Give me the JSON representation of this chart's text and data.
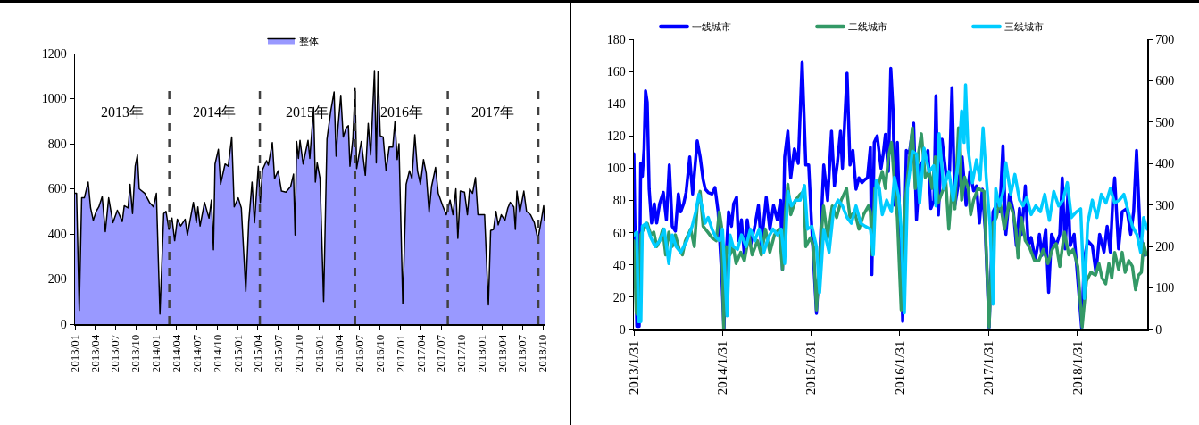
{
  "chart_data": [
    {
      "type": "area",
      "legend": "top",
      "grid": false,
      "xlim": [
        "2013-01-01",
        "2018-10-12"
      ],
      "xticks": [
        {
          "value": "2013-01-01",
          "label": "2013/01"
        },
        {
          "value": "2013-04-01",
          "label": "2013/04"
        },
        {
          "value": "2013-07-01",
          "label": "2013/07"
        },
        {
          "value": "2013-10-01",
          "label": "2013/10"
        },
        {
          "value": "2014-01-01",
          "label": "2014/01"
        },
        {
          "value": "2014-04-01",
          "label": "2014/04"
        },
        {
          "value": "2014-07-01",
          "label": "2014/07"
        },
        {
          "value": "2014-10-01",
          "label": "2014/10"
        },
        {
          "value": "2015-01-01",
          "label": "2015/01"
        },
        {
          "value": "2015-04-01",
          "label": "2015/04"
        },
        {
          "value": "2015-07-01",
          "label": "2015/07"
        },
        {
          "value": "2015-10-01",
          "label": "2015/10"
        },
        {
          "value": "2016-01-01",
          "label": "2016/01"
        },
        {
          "value": "2016-04-01",
          "label": "2016/04"
        },
        {
          "value": "2016-07-01",
          "label": "2016/07"
        },
        {
          "value": "2016-10-01",
          "label": "2016/10"
        },
        {
          "value": "2017-01-01",
          "label": "2017/01"
        },
        {
          "value": "2017-04-01",
          "label": "2017/04"
        },
        {
          "value": "2017-07-01",
          "label": "2017/07"
        },
        {
          "value": "2017-10-01",
          "label": "2017/10"
        },
        {
          "value": "2018-01-01",
          "label": "2018/01"
        },
        {
          "value": "2018-04-01",
          "label": "2018/04"
        },
        {
          "value": "2018-07-01",
          "label": "2018/07"
        },
        {
          "value": "2018-10-01",
          "label": "2018/10"
        }
      ],
      "ylim": [
        0,
        1200
      ],
      "yticks": [
        0,
        200,
        400,
        600,
        800,
        1000,
        1200
      ],
      "ref_lines": [
        {
          "axis": "x",
          "value": "2014-02-28",
          "color": "#404040",
          "line_style": "dashed"
        },
        {
          "axis": "x",
          "value": "2015-04-10",
          "color": "#404040",
          "line_style": "dashed"
        },
        {
          "axis": "x",
          "value": "2016-06-10",
          "color": "#404040",
          "line_style": "dashed"
        },
        {
          "axis": "x",
          "value": "2017-07-31",
          "color": "#404040",
          "line_style": "dashed"
        },
        {
          "axis": "x",
          "value": "2018-09-10",
          "color": "#404040",
          "line_style": "dashed"
        }
      ],
      "annotations": [
        "2013年",
        "2014年",
        "2015年",
        "2016年",
        "2017年"
      ],
      "series": [
        {
          "name": "整体",
          "color": "#9999ff",
          "x": [
            "2013-01-01",
            "2013-01-08",
            "2013-01-20",
            "2013-01-31",
            "2013-02-12",
            "2013-03-01",
            "2013-03-12",
            "2013-03-24",
            "2013-04-06",
            "2013-04-18",
            "2013-05-03",
            "2013-05-17",
            "2013-06-01",
            "2013-06-20",
            "2013-07-10",
            "2013-08-01",
            "2013-08-10",
            "2013-08-27",
            "2013-09-05",
            "2013-09-16",
            "2013-09-28",
            "2013-10-08",
            "2013-10-16",
            "2013-11-10",
            "2013-12-01",
            "2013-12-19",
            "2014-01-01",
            "2014-01-17",
            "2014-02-03",
            "2014-02-13",
            "2014-02-26",
            "2014-03-12",
            "2014-03-24",
            "2014-04-05",
            "2014-04-20",
            "2014-05-10",
            "2014-05-20",
            "2014-06-01",
            "2014-06-16",
            "2014-06-29",
            "2014-07-06",
            "2014-07-16",
            "2014-08-05",
            "2014-08-25",
            "2014-09-05",
            "2014-09-14",
            "2014-09-21",
            "2014-10-06",
            "2014-10-16",
            "2014-11-05",
            "2014-11-19",
            "2014-12-05",
            "2014-12-16",
            "2015-01-03",
            "2015-01-17",
            "2015-02-06",
            "2015-02-19",
            "2015-03-06",
            "2015-03-17",
            "2015-04-03",
            "2015-04-12",
            "2015-04-22",
            "2015-05-10",
            "2015-05-18",
            "2015-06-05",
            "2015-06-15",
            "2015-07-01",
            "2015-07-16",
            "2015-08-05",
            "2015-08-26",
            "2015-09-08",
            "2015-09-15",
            "2015-09-22",
            "2015-09-30",
            "2015-10-07",
            "2015-10-21",
            "2015-11-12",
            "2015-11-20",
            "2015-12-07",
            "2015-12-15",
            "2015-12-23",
            "2016-01-05",
            "2016-01-21",
            "2016-02-05",
            "2016-02-22",
            "2016-03-08",
            "2016-03-17",
            "2016-03-25",
            "2016-04-07",
            "2016-04-18",
            "2016-05-01",
            "2016-05-11",
            "2016-05-18",
            "2016-05-31",
            "2016-06-10",
            "2016-06-17",
            "2016-06-30",
            "2016-07-08",
            "2016-07-26",
            "2016-08-08",
            "2016-08-19",
            "2016-09-05",
            "2016-09-13",
            "2016-09-21",
            "2016-10-01",
            "2016-10-14",
            "2016-10-27",
            "2016-11-10",
            "2016-11-26",
            "2016-12-06",
            "2016-12-16",
            "2016-12-24",
            "2017-01-10",
            "2017-01-25",
            "2017-02-09",
            "2017-02-20",
            "2017-03-05",
            "2017-03-17",
            "2017-03-30",
            "2017-04-13",
            "2017-04-25",
            "2017-05-08",
            "2017-05-19",
            "2017-06-06",
            "2017-06-18",
            "2017-07-08",
            "2017-07-24",
            "2017-08-10",
            "2017-08-23",
            "2017-09-05",
            "2017-09-14",
            "2017-09-25",
            "2017-10-14",
            "2017-10-27",
            "2017-11-06",
            "2017-11-19",
            "2017-12-02",
            "2017-12-13",
            "2017-12-29",
            "2018-01-12",
            "2018-01-29",
            "2018-02-08",
            "2018-02-21",
            "2018-03-04",
            "2018-03-14",
            "2018-03-28",
            "2018-04-13",
            "2018-04-26",
            "2018-05-07",
            "2018-05-23",
            "2018-05-30",
            "2018-06-06",
            "2018-06-19",
            "2018-07-07",
            "2018-07-19",
            "2018-08-06",
            "2018-08-23",
            "2018-09-08",
            "2018-09-24",
            "2018-10-04",
            "2018-10-08",
            "2018-10-12"
          ],
          "values": [
            580,
            580,
            60,
            560,
            560,
            630,
            515,
            460,
            500,
            520,
            565,
            410,
            560,
            450,
            505,
            455,
            525,
            515,
            620,
            490,
            700,
            750,
            600,
            580,
            540,
            520,
            580,
            45,
            490,
            500,
            420,
            470,
            370,
            465,
            435,
            465,
            395,
            460,
            540,
            450,
            520,
            435,
            540,
            470,
            550,
            330,
            710,
            775,
            620,
            710,
            700,
            830,
            520,
            560,
            515,
            145,
            450,
            630,
            450,
            700,
            540,
            685,
            725,
            705,
            805,
            645,
            680,
            590,
            585,
            610,
            665,
            395,
            810,
            735,
            815,
            710,
            815,
            735,
            960,
            630,
            715,
            645,
            100,
            820,
            945,
            1030,
            745,
            870,
            1015,
            830,
            870,
            880,
            700,
            820,
            1045,
            690,
            765,
            810,
            660,
            890,
            750,
            1125,
            715,
            1120,
            835,
            830,
            680,
            785,
            785,
            900,
            730,
            800,
            90,
            620,
            680,
            645,
            840,
            680,
            620,
            730,
            670,
            495,
            610,
            695,
            580,
            525,
            485,
            550,
            485,
            600,
            380,
            590,
            585,
            485,
            600,
            580,
            650,
            485,
            485,
            485,
            85,
            415,
            420,
            500,
            440,
            485,
            460,
            515,
            540,
            520,
            420,
            590,
            495,
            590,
            500,
            485,
            450,
            375,
            465,
            525,
            460,
            485
          ]
        }
      ]
    },
    {
      "type": "line",
      "legend": "top",
      "grid": false,
      "xlim": [
        "2013-01-31",
        "2018-11-15"
      ],
      "xticks": [
        {
          "value": "2013-01-31",
          "label": "2013/1/31"
        },
        {
          "value": "2014-01-31",
          "label": "2014/1/31"
        },
        {
          "value": "2015-01-31",
          "label": "2015/1/31"
        },
        {
          "value": "2016-01-31",
          "label": "2016/1/31"
        },
        {
          "value": "2017-01-31",
          "label": "2017/1/31"
        },
        {
          "value": "2018-01-31",
          "label": "2018/1/31"
        }
      ],
      "ylim": [
        0,
        180
      ],
      "yticks": [
        0,
        20,
        40,
        60,
        80,
        100,
        120,
        140,
        160,
        180
      ],
      "y2lim": [
        0,
        700
      ],
      "y2ticks": [
        0,
        100,
        200,
        300,
        400,
        500,
        600,
        700
      ],
      "series": [
        {
          "name": "一线城市",
          "color": "#0000ff",
          "x": [
            "2013-01-31",
            "2013-02-05",
            "2013-02-12",
            "2013-02-22",
            "2013-02-28",
            "2013-03-07",
            "2013-03-14",
            "2013-03-20",
            "2013-03-27",
            "2013-04-04",
            "2013-04-14",
            "2013-04-25",
            "2013-05-05",
            "2013-05-17",
            "2013-06-01",
            "2013-06-14",
            "2013-06-26",
            "2013-07-08",
            "2013-07-21",
            "2013-08-02",
            "2013-08-12",
            "2013-08-24",
            "2013-09-03",
            "2013-09-18",
            "2013-09-30",
            "2013-10-19",
            "2013-10-31",
            "2013-11-12",
            "2013-11-21",
            "2013-12-03",
            "2013-12-19",
            "2013-12-31",
            "2014-01-13",
            "2014-01-29",
            "2014-02-06",
            "2014-02-16",
            "2014-02-25",
            "2014-03-09",
            "2014-03-18",
            "2014-03-30",
            "2014-04-07",
            "2014-04-19",
            "2014-05-01",
            "2014-05-13",
            "2014-05-26",
            "2014-06-13",
            "2014-06-28",
            "2014-07-10",
            "2014-07-30",
            "2014-08-14",
            "2014-08-29",
            "2014-09-14",
            "2014-09-27",
            "2014-10-05",
            "2014-10-14",
            "2014-10-27",
            "2014-11-08",
            "2014-11-23",
            "2014-12-09",
            "2014-12-25",
            "2015-01-09",
            "2015-01-21",
            "2015-02-03",
            "2015-02-22",
            "2015-03-07",
            "2015-03-24",
            "2015-04-09",
            "2015-04-25",
            "2015-05-07",
            "2015-05-19",
            "2015-06-01",
            "2015-06-09",
            "2015-06-28",
            "2015-07-10",
            "2015-07-22",
            "2015-08-04",
            "2015-08-16",
            "2015-08-28",
            "2015-09-10",
            "2015-09-20",
            "2015-10-02",
            "2015-10-08",
            "2015-10-18",
            "2015-10-30",
            "2015-11-15",
            "2015-11-24",
            "2015-12-03",
            "2015-12-15",
            "2015-12-25",
            "2016-01-03",
            "2016-01-11",
            "2016-01-21",
            "2016-02-02",
            "2016-02-12",
            "2016-02-27",
            "2016-03-10",
            "2016-03-28",
            "2016-04-09",
            "2016-04-24",
            "2016-05-10",
            "2016-05-26",
            "2016-06-07",
            "2016-06-20",
            "2016-06-28",
            "2016-07-08",
            "2016-07-23",
            "2016-08-10",
            "2016-08-23",
            "2016-09-02",
            "2016-09-14",
            "2016-09-29",
            "2016-10-14",
            "2016-10-30",
            "2016-11-15",
            "2016-11-30",
            "2016-12-12",
            "2016-12-24",
            "2017-01-05",
            "2017-01-17",
            "2017-02-02",
            "2017-02-18",
            "2017-03-06",
            "2017-03-18",
            "2017-03-31",
            "2017-04-12",
            "2017-04-27",
            "2017-05-13",
            "2017-05-25",
            "2017-06-07",
            "2017-06-16",
            "2017-07-01",
            "2017-07-13",
            "2017-07-25",
            "2017-08-11",
            "2017-08-28",
            "2017-09-07",
            "2017-09-23",
            "2017-10-05",
            "2017-10-17",
            "2017-11-05",
            "2017-11-20",
            "2017-11-30",
            "2017-12-12",
            "2017-12-24",
            "2018-01-02",
            "2018-01-18",
            "2018-02-18",
            "2018-03-01",
            "2018-03-15",
            "2018-04-03",
            "2018-04-18",
            "2018-05-03",
            "2018-05-21",
            "2018-06-03",
            "2018-06-16",
            "2018-06-26",
            "2018-07-04",
            "2018-07-20",
            "2018-08-04",
            "2018-08-23",
            "2018-09-08",
            "2018-09-20",
            "2018-10-02",
            "2018-10-17",
            "2018-11-05"
          ],
          "values": [
            109,
            59,
            2,
            2,
            103,
            95,
            112,
            148,
            141,
            87,
            66,
            78,
            66,
            78,
            85,
            68,
            102,
            64,
            61,
            84,
            73,
            78,
            85,
            107,
            84,
            117,
            107,
            93,
            87,
            85,
            84,
            88,
            73,
            30,
            0,
            48,
            73,
            64,
            78,
            82,
            55,
            68,
            46,
            68,
            52,
            64,
            77,
            52,
            82,
            62,
            77,
            68,
            80,
            37,
            107,
            123,
            94,
            112,
            103,
            166,
            102,
            102,
            62,
            10,
            44,
            102,
            80,
            123,
            89,
            103,
            123,
            100,
            159,
            102,
            111,
            87,
            94,
            91,
            93,
            94,
            113,
            34,
            116,
            120,
            100,
            109,
            121,
            98,
            162,
            137,
            77,
            116,
            59,
            5,
            111,
            109,
            128,
            68,
            102,
            105,
            111,
            75,
            80,
            145,
            71,
            118,
            94,
            98,
            150,
            77,
            91,
            107,
            77,
            98,
            86,
            89,
            66,
            87,
            62,
            1,
            73,
            78,
            73,
            114,
            59,
            84,
            73,
            52,
            75,
            59,
            89,
            52,
            57,
            43,
            59,
            46,
            62,
            23,
            59,
            52,
            59,
            94,
            50,
            86,
            52,
            59,
            1,
            44,
            55,
            52,
            35,
            59,
            48,
            64,
            48,
            80,
            94,
            50,
            73,
            75,
            59,
            73,
            111,
            59,
            46
          ]
        },
        {
          "name": "二线城市",
          "color": "#339966",
          "axis": "y2",
          "x": [
            "2013-01-31",
            "2013-02-10",
            "2013-02-17",
            "2013-02-28",
            "2013-03-12",
            "2013-03-27",
            "2013-04-11",
            "2013-04-23",
            "2013-05-05",
            "2013-05-17",
            "2013-05-30",
            "2013-06-11",
            "2013-06-24",
            "2013-07-08",
            "2013-07-21",
            "2013-08-06",
            "2013-08-19",
            "2013-08-31",
            "2013-09-22",
            "2013-10-07",
            "2013-10-19",
            "2013-10-31",
            "2013-11-12",
            "2013-12-01",
            "2013-12-19",
            "2014-01-05",
            "2014-01-18",
            "2014-01-27",
            "2014-02-05",
            "2014-02-16",
            "2014-03-03",
            "2014-03-16",
            "2014-03-28",
            "2014-04-16",
            "2014-05-01",
            "2014-05-20",
            "2014-06-02",
            "2014-06-24",
            "2014-07-10",
            "2014-07-27",
            "2014-08-14",
            "2014-09-02",
            "2014-09-21",
            "2014-10-05",
            "2014-10-17",
            "2014-10-27",
            "2014-11-08",
            "2014-11-28",
            "2014-12-17",
            "2015-01-01",
            "2015-01-09",
            "2015-01-28",
            "2015-02-10",
            "2015-02-22",
            "2015-03-07",
            "2015-03-23",
            "2015-04-09",
            "2015-04-28",
            "2015-05-16",
            "2015-06-04",
            "2015-06-26",
            "2015-07-10",
            "2015-07-29",
            "2015-08-16",
            "2015-09-04",
            "2015-09-24",
            "2015-10-02",
            "2015-10-10",
            "2015-10-20",
            "2015-11-01",
            "2015-11-20",
            "2015-12-03",
            "2015-12-15",
            "2015-12-28",
            "2016-01-09",
            "2016-01-21",
            "2016-02-06",
            "2016-02-23",
            "2016-03-10",
            "2016-03-23",
            "2016-04-04",
            "2016-04-17",
            "2016-04-29",
            "2016-05-15",
            "2016-05-31",
            "2016-06-12",
            "2016-06-25",
            "2016-07-07",
            "2016-07-20",
            "2016-08-08",
            "2016-08-20",
            "2016-09-02",
            "2016-09-14",
            "2016-09-29",
            "2016-10-12",
            "2016-10-24",
            "2016-11-08",
            "2016-11-18",
            "2016-11-30",
            "2016-12-18",
            "2017-01-12",
            "2017-02-02",
            "2017-02-18",
            "2017-03-04",
            "2017-03-18",
            "2017-04-06",
            "2017-04-25",
            "2017-05-10",
            "2017-05-23",
            "2017-06-01",
            "2017-06-15",
            "2017-07-01",
            "2017-07-17",
            "2017-08-08",
            "2017-08-26",
            "2017-09-13",
            "2017-10-02",
            "2017-10-20",
            "2017-11-05",
            "2017-11-20",
            "2017-12-09",
            "2017-12-27",
            "2018-01-14",
            "2018-02-02",
            "2018-02-20",
            "2018-03-10",
            "2018-03-28",
            "2018-04-16",
            "2018-04-30",
            "2018-05-13",
            "2018-05-28",
            "2018-06-10",
            "2018-06-22",
            "2018-07-04",
            "2018-07-20",
            "2018-08-04",
            "2018-08-16",
            "2018-08-31",
            "2018-09-15",
            "2018-09-28",
            "2018-10-10",
            "2018-10-22",
            "2018-10-31",
            "2018-11-12"
          ],
          "values": [
            214,
            40,
            33,
            228,
            242,
            256,
            228,
            235,
            200,
            214,
            242,
            180,
            235,
            200,
            228,
            193,
            180,
            214,
            242,
            200,
            298,
            333,
            249,
            235,
            221,
            214,
            284,
            249,
            2,
            200,
            180,
            200,
            159,
            186,
            166,
            228,
            180,
            214,
            180,
            242,
            186,
            228,
            242,
            145,
            284,
            350,
            277,
            312,
            326,
            333,
            200,
            221,
            200,
            47,
            173,
            298,
            221,
            298,
            270,
            312,
            340,
            270,
            284,
            242,
            277,
            298,
            284,
            180,
            340,
            343,
            381,
            340,
            416,
            451,
            354,
            270,
            47,
            312,
            409,
            486,
            340,
            423,
            472,
            367,
            381,
            340,
            416,
            305,
            326,
            354,
            242,
            340,
            291,
            486,
            312,
            367,
            340,
            277,
            312,
            340,
            333,
            6,
            256,
            270,
            312,
            242,
            305,
            284,
            242,
            173,
            270,
            214,
            200,
            166,
            166,
            193,
            159,
            193,
            207,
            152,
            235,
            180,
            193,
            152,
            6,
            117,
            138,
            131,
            159,
            124,
            110,
            159,
            124,
            186,
            145,
            186,
            138,
            166,
            152,
            96,
            131,
            138,
            207,
            180
          ]
        },
        {
          "name": "三线城市",
          "color": "#00ccff",
          "axis": "y2",
          "x": [
            "2013-01-31",
            "2013-02-12",
            "2013-02-19",
            "2013-03-01",
            "2013-03-07",
            "2013-03-23",
            "2013-04-11",
            "2013-04-29",
            "2013-05-17",
            "2013-06-05",
            "2013-06-24",
            "2013-07-08",
            "2013-07-24",
            "2013-08-12",
            "2013-09-06",
            "2013-09-28",
            "2013-10-13",
            "2013-10-26",
            "2013-11-07",
            "2013-11-20",
            "2013-12-03",
            "2013-12-19",
            "2014-01-05",
            "2014-01-20",
            "2014-01-31",
            "2014-02-19",
            "2014-03-03",
            "2014-03-16",
            "2014-04-03",
            "2014-04-19",
            "2014-05-08",
            "2014-05-26",
            "2014-06-13",
            "2014-07-01",
            "2014-07-20",
            "2014-08-07",
            "2014-08-27",
            "2014-09-14",
            "2014-09-30",
            "2014-10-14",
            "2014-10-27",
            "2014-11-11",
            "2014-11-28",
            "2014-12-17",
            "2015-01-04",
            "2015-01-16",
            "2015-02-03",
            "2015-02-22",
            "2015-03-07",
            "2015-03-24",
            "2015-04-15",
            "2015-05-04",
            "2015-05-22",
            "2015-06-09",
            "2015-06-28",
            "2015-07-16",
            "2015-08-04",
            "2015-08-23",
            "2015-09-10",
            "2015-10-02",
            "2015-10-14",
            "2015-10-26",
            "2015-11-08",
            "2015-11-20",
            "2015-12-08",
            "2015-12-28",
            "2016-01-09",
            "2016-01-27",
            "2016-02-06",
            "2016-02-19",
            "2016-03-03",
            "2016-03-23",
            "2016-04-09",
            "2016-04-22",
            "2016-05-10",
            "2016-05-31",
            "2016-06-19",
            "2016-06-28",
            "2016-07-11",
            "2016-07-30",
            "2016-08-20",
            "2016-09-07",
            "2016-09-28",
            "2016-10-12",
            "2016-10-22",
            "2016-10-28",
            "2016-11-07",
            "2016-11-25",
            "2016-12-12",
            "2016-12-27",
            "2017-01-08",
            "2017-01-21",
            "2017-02-06",
            "2017-02-18",
            "2017-03-01",
            "2017-03-17",
            "2017-04-04",
            "2017-04-12",
            "2017-05-02",
            "2017-05-19",
            "2017-06-07",
            "2017-06-22",
            "2017-07-07",
            "2017-07-25",
            "2017-08-13",
            "2017-09-01",
            "2017-09-19",
            "2017-10-08",
            "2017-10-26",
            "2017-11-15",
            "2017-12-03",
            "2017-12-21",
            "2018-01-07",
            "2018-01-28",
            "2018-02-14",
            "2018-03-01",
            "2018-03-15",
            "2018-04-03",
            "2018-04-22",
            "2018-05-10",
            "2018-05-29",
            "2018-06-16",
            "2018-07-04",
            "2018-07-23",
            "2018-08-11",
            "2018-08-29",
            "2018-09-15",
            "2018-10-04",
            "2018-10-19",
            "2018-10-31",
            "2018-11-15"
          ],
          "values": [
            228,
            235,
            19,
            19,
            249,
            256,
            221,
            200,
            214,
            242,
            159,
            228,
            200,
            186,
            214,
            249,
            284,
            326,
            298,
            256,
            270,
            242,
            221,
            214,
            242,
            33,
            228,
            200,
            193,
            228,
            200,
            242,
            214,
            242,
            186,
            221,
            242,
            228,
            242,
            159,
            333,
            298,
            312,
            312,
            347,
            242,
            249,
            200,
            89,
            242,
            186,
            291,
            312,
            298,
            270,
            256,
            298,
            256,
            249,
            242,
            180,
            360,
            340,
            277,
            312,
            284,
            367,
            319,
            242,
            40,
            340,
            430,
            423,
            305,
            437,
            381,
            395,
            298,
            472,
            340,
            381,
            312,
            402,
            527,
            451,
            590,
            437,
            354,
            409,
            360,
            486,
            367,
            249,
            61,
            340,
            298,
            340,
            402,
            326,
            374,
            312,
            298,
            319,
            277,
            298,
            284,
            326,
            263,
            333,
            298,
            312,
            354,
            270,
            284,
            291,
            75,
            256,
            312,
            270,
            326,
            305,
            340,
            305,
            312,
            326,
            284,
            249,
            228,
            186,
            270,
            242
          ]
        }
      ]
    }
  ]
}
